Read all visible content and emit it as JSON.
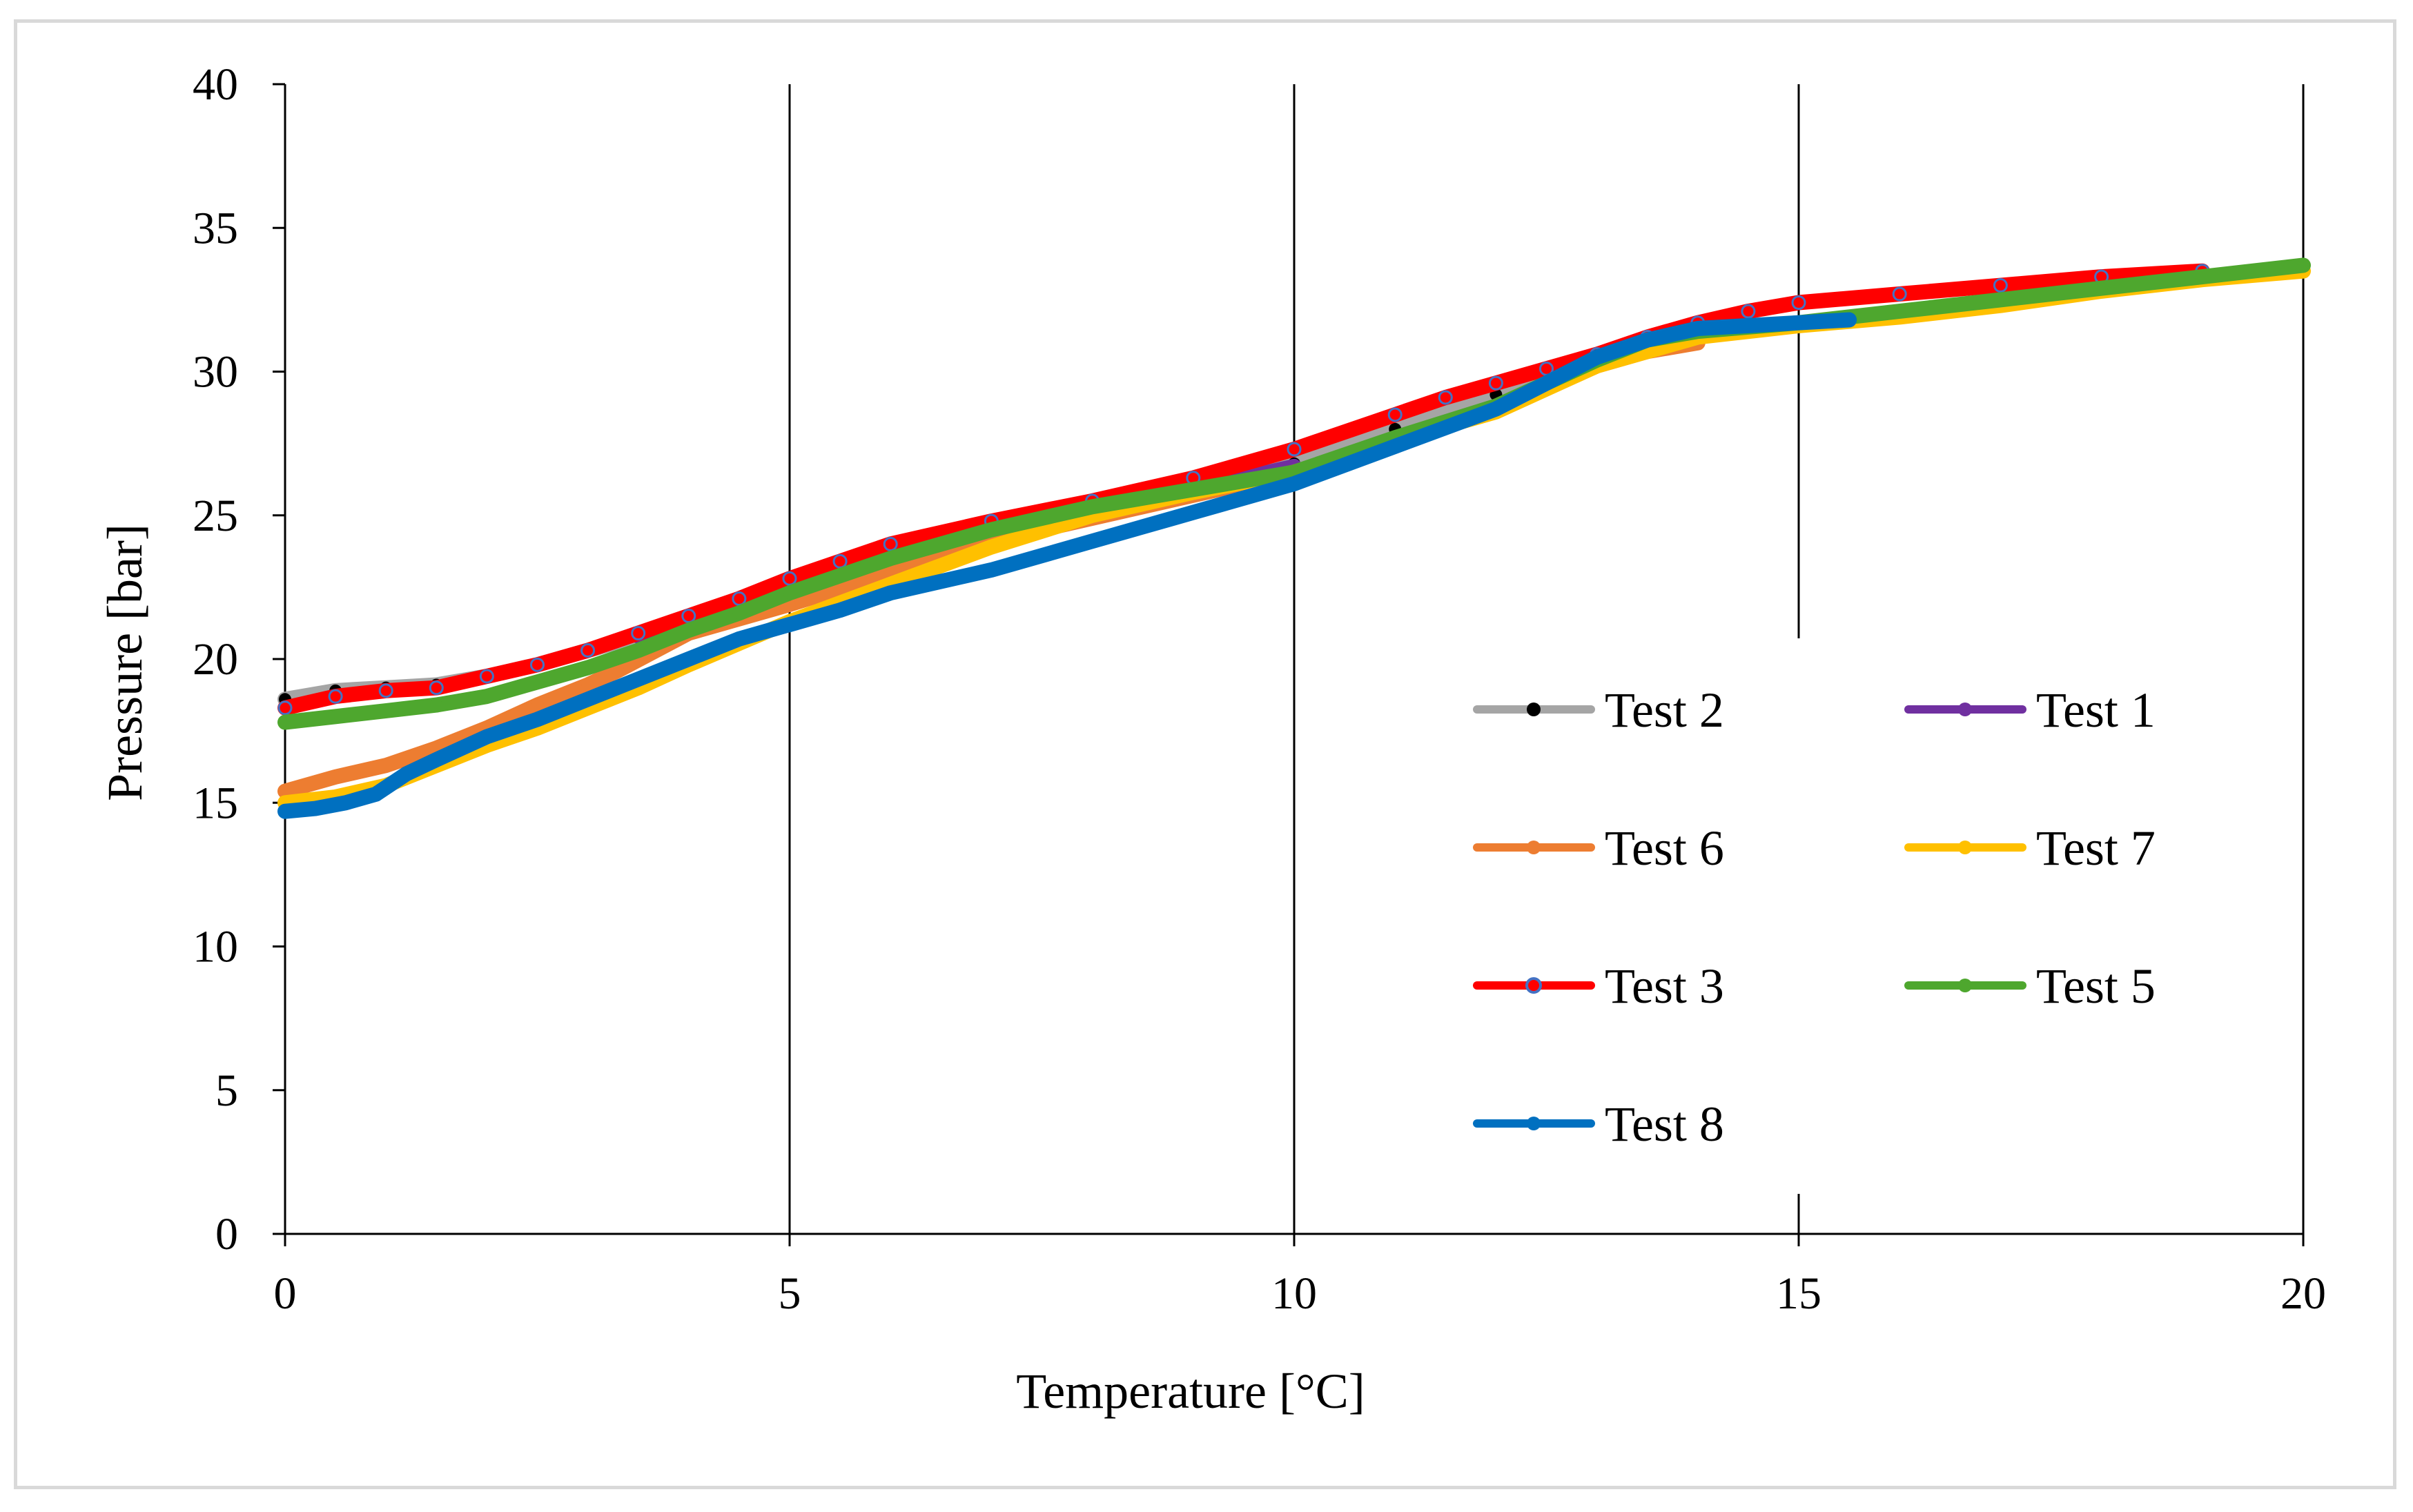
{
  "chart_data": {
    "type": "line",
    "title": "",
    "xlabel": "Temperature [°C]",
    "ylabel": "Pressure [bar]",
    "xlim": [
      0,
      20
    ],
    "ylim": [
      0,
      40
    ],
    "xticks": [
      0,
      5,
      10,
      15,
      20
    ],
    "yticks": [
      0,
      5,
      10,
      15,
      20,
      25,
      30,
      35,
      40
    ],
    "vertical_gridlines": [
      5,
      10,
      15,
      20
    ],
    "legend_position": "right-center",
    "series": [
      {
        "name": "Test 2",
        "color": "#000000",
        "line_color": "#a5a5a5",
        "marker": "filled",
        "x": [
          0,
          0.5,
          1,
          1.5,
          2,
          2.5,
          3,
          3.5,
          4,
          4.5,
          5,
          6,
          7,
          8,
          9,
          10,
          11,
          12,
          13,
          13.5,
          14
        ],
        "y": [
          18.6,
          18.9,
          19.0,
          19.1,
          19.4,
          19.8,
          20.3,
          20.8,
          21.3,
          21.8,
          22.5,
          23.6,
          24.5,
          25.2,
          25.9,
          26.8,
          28.0,
          29.2,
          30.5,
          31.1,
          31.4
        ]
      },
      {
        "name": "Test 1",
        "color": "#7030a0",
        "line_color": "#7030a0",
        "marker": "filled",
        "x": [
          3.5,
          4,
          4.5,
          5,
          5.5,
          6,
          7,
          8,
          9,
          10
        ],
        "y": [
          20.8,
          21.1,
          21.5,
          22.0,
          22.4,
          23.0,
          24.1,
          25.1,
          25.9,
          26.7
        ]
      },
      {
        "name": "Test 6",
        "color": "#ed7d31",
        "line_color": "#ed7d31",
        "marker": "filled",
        "x": [
          0,
          0.5,
          1,
          1.5,
          2,
          2.5,
          3,
          3.3,
          4,
          5,
          6,
          7,
          8,
          9,
          10,
          11,
          12,
          13,
          13.5,
          14
        ],
        "y": [
          15.4,
          15.9,
          16.3,
          16.9,
          17.6,
          18.4,
          19.1,
          19.6,
          20.9,
          21.9,
          23.0,
          24.1,
          24.9,
          25.7,
          26.5,
          27.6,
          28.7,
          30.2,
          30.7,
          31.0
        ]
      },
      {
        "name": "Test 7",
        "color": "#ffc000",
        "line_color": "#ffc000",
        "marker": "filled",
        "x": [
          0,
          0.5,
          1,
          1.5,
          2,
          2.5,
          3,
          3.5,
          4,
          5,
          6,
          7,
          8,
          9,
          10,
          11,
          12,
          13,
          14,
          15,
          16,
          17,
          18,
          19,
          20
        ],
        "y": [
          15.0,
          15.2,
          15.6,
          16.3,
          17.0,
          17.6,
          18.3,
          19.0,
          19.8,
          21.3,
          22.6,
          23.9,
          25.0,
          25.8,
          26.5,
          27.6,
          28.6,
          30.2,
          31.2,
          31.6,
          31.9,
          32.3,
          32.8,
          33.2,
          33.5
        ]
      },
      {
        "name": "Test 3",
        "color": "#ff0000",
        "line_color": "#ff0000",
        "marker": "hollow",
        "x": [
          0,
          0.5,
          1,
          1.5,
          2,
          2.5,
          3,
          3.5,
          4,
          4.5,
          5,
          5.5,
          6,
          7,
          8,
          9,
          10,
          11,
          11.5,
          12,
          12.5,
          13,
          13.5,
          14,
          14.5,
          15,
          16,
          17,
          18,
          19
        ],
        "y": [
          18.3,
          18.7,
          18.9,
          19.0,
          19.4,
          19.8,
          20.3,
          20.9,
          21.5,
          22.1,
          22.8,
          23.4,
          24.0,
          24.8,
          25.5,
          26.3,
          27.3,
          28.5,
          29.1,
          29.6,
          30.1,
          30.6,
          31.2,
          31.7,
          32.1,
          32.4,
          32.7,
          33.0,
          33.3,
          33.5
        ]
      },
      {
        "name": "Test 5",
        "color": "#4ea72e",
        "line_color": "#4ea72e",
        "marker": "filled",
        "x": [
          0,
          0.5,
          1,
          1.5,
          2,
          2.5,
          3,
          3.5,
          4,
          4.5,
          5,
          5.5,
          6,
          7,
          8,
          9,
          10,
          11,
          12,
          13,
          13.5,
          14,
          15,
          16,
          17,
          18,
          19,
          20
        ],
        "y": [
          17.8,
          18.0,
          18.2,
          18.4,
          18.7,
          19.2,
          19.7,
          20.3,
          21.0,
          21.6,
          22.3,
          22.9,
          23.5,
          24.5,
          25.3,
          25.9,
          26.5,
          27.7,
          28.8,
          30.4,
          31.1,
          31.4,
          31.7,
          32.1,
          32.5,
          32.9,
          33.3,
          33.7
        ]
      },
      {
        "name": "Test 8",
        "color": "#0070c0",
        "line_color": "#0070c0",
        "marker": "filled",
        "x": [
          0,
          0.3,
          0.6,
          0.9,
          1.2,
          1.5,
          2,
          2.5,
          3,
          3.5,
          4,
          4.5,
          5,
          5.5,
          6,
          7,
          8,
          9,
          10,
          11,
          12,
          12.5,
          13,
          13.5,
          14,
          14.5,
          15,
          15.5
        ],
        "y": [
          14.7,
          14.8,
          15.0,
          15.3,
          16.0,
          16.5,
          17.3,
          17.9,
          18.6,
          19.3,
          20.0,
          20.7,
          21.2,
          21.7,
          22.3,
          23.1,
          24.1,
          25.1,
          26.1,
          27.4,
          28.7,
          29.6,
          30.5,
          31.1,
          31.5,
          31.6,
          31.7,
          31.8
        ]
      }
    ]
  }
}
